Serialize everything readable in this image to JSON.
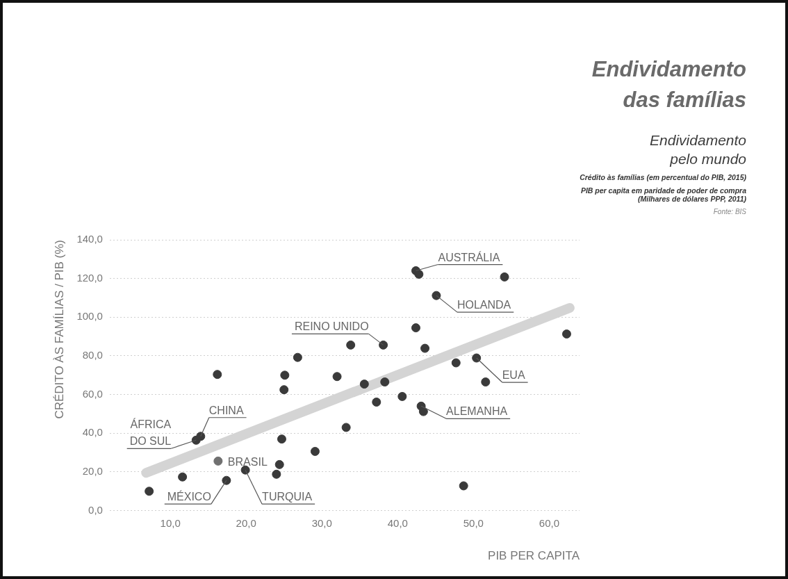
{
  "chart_data": {
    "type": "scatter",
    "title": "Endividamento das famílias",
    "subtitle": "Endividamento pelo mundo",
    "xlabel": "PIB PER CAPITA",
    "ylabel": "CRÉDITO ÀS FAMÍLIAS / PIB (%)",
    "annotations": [
      "Crédito às famílias (em percentual do PIB, 2015)",
      "PIB per capita em paridade de poder de compra (Milhares de dólares PPP, 2011)",
      "Fonte: BIS",
      {
        "text": "AUSTRÁLIA",
        "x": 42.4,
        "y": 124.0
      },
      {
        "text": "HOLANDA",
        "x": 45.1,
        "y": 111.2
      },
      {
        "text": "REINO UNIDO",
        "x": 38.1,
        "y": 85.6
      },
      {
        "text": "EUA",
        "x": 50.4,
        "y": 78.9
      },
      {
        "text": "ALEMANHA",
        "x": 43.1,
        "y": 54.0
      },
      {
        "text": "CHINA",
        "x": 14.0,
        "y": 38.4
      },
      {
        "text": "ÁFRICA DO SUL",
        "x": 13.4,
        "y": 36.4
      },
      {
        "text": "BRASIL",
        "x": 16.3,
        "y": 25.6
      },
      {
        "text": "MÉXICO",
        "x": 17.4,
        "y": 15.6
      },
      {
        "text": "TURQUIA",
        "x": 19.9,
        "y": 21.0
      }
    ],
    "series": [
      {
        "type": "line",
        "marker": "none",
        "color": "#d4d4d4",
        "x": [
          6.8,
          62.7
        ],
        "values": [
          19.5,
          104.8
        ]
      },
      {
        "color": "#3a3a3a",
        "x": [
          7.2,
          11.6,
          13.4,
          14.0,
          16.2,
          17.4,
          19.9,
          25.1,
          25.0,
          26.8,
          24.7,
          24.4,
          24.0,
          29.1,
          32.0,
          33.8,
          38.1,
          42.4,
          43.6,
          42.4,
          42.8,
          54.1,
          45.1,
          62.3,
          47.7,
          50.4,
          51.6,
          35.6,
          38.3,
          37.2,
          40.6,
          43.1,
          43.4,
          33.2,
          48.7
        ],
        "values": [
          10.0,
          17.4,
          36.4,
          38.4,
          70.4,
          15.6,
          21.0,
          70.0,
          62.5,
          79.2,
          37.0,
          23.8,
          18.8,
          30.6,
          69.3,
          85.6,
          85.6,
          94.5,
          83.9,
          124.0,
          122.2,
          120.8,
          111.2,
          91.3,
          76.4,
          78.9,
          66.5,
          65.4,
          66.5,
          56.1,
          59.0,
          54.0,
          51.2,
          43.0,
          12.8
        ]
      },
      {
        "color": "#707070",
        "x": [
          16.3
        ],
        "values": [
          25.6
        ]
      }
    ],
    "xlim": [
      2,
      64
    ],
    "xticks": [
      {
        "value": 10,
        "label": "10,0"
      },
      {
        "value": 20,
        "label": "20,0"
      },
      {
        "value": 30,
        "label": "30,0"
      },
      {
        "value": 40,
        "label": "40,0"
      },
      {
        "value": 50,
        "label": "50,0"
      },
      {
        "value": 60,
        "label": "60,0"
      }
    ],
    "ylim": [
      0,
      140
    ],
    "yticks": [
      {
        "value": 0,
        "label": "0,0"
      },
      {
        "value": 20,
        "label": "20,0"
      },
      {
        "value": 40,
        "label": "40,0"
      },
      {
        "value": 60,
        "label": "60,0"
      },
      {
        "value": 80,
        "label": "80,0"
      },
      {
        "value": 100,
        "label": "100,0"
      },
      {
        "value": 120,
        "label": "120,0"
      },
      {
        "value": 140,
        "label": "140,0"
      }
    ],
    "grid": "y",
    "legend": false,
    "marker": "circle"
  }
}
